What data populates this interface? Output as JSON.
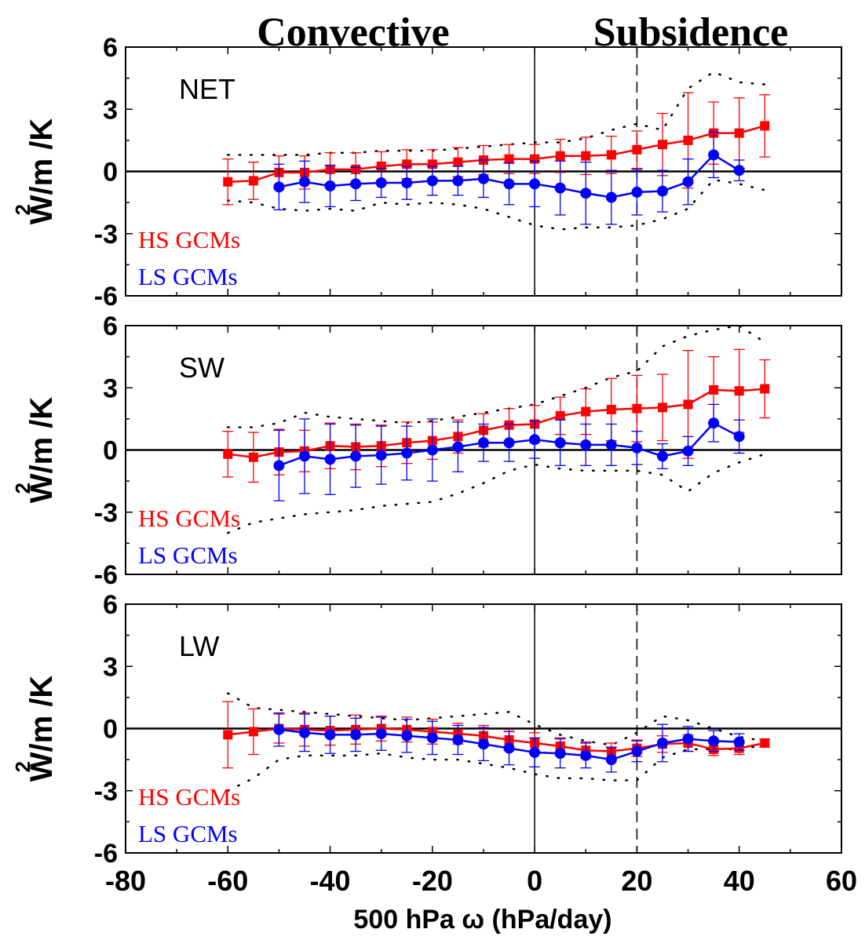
{
  "header": {
    "left": "Convective",
    "right": "Subsidence"
  },
  "xlabel": "500 hPa ω (hPa/day)",
  "ylabel": {
    "main": "W/m /K",
    "superscript": "2"
  },
  "x_ticks": [
    "-80",
    "-40",
    "-20",
    "0",
    "20",
    "40",
    "60"
  ],
  "x_ticks_partial": [
    "-60"
  ],
  "y_ticks": [
    "6",
    "3",
    "0",
    "-3",
    "-6"
  ],
  "legend": [
    "HS GCMs",
    "LS GCMs"
  ],
  "colors": {
    "hs": "#ff0000",
    "ls": "#0000ff",
    "axes": "#000000",
    "envelope": "#000000"
  },
  "chart_data": [
    {
      "type": "line",
      "panel_label": "NET",
      "xlim": [
        -80,
        60
      ],
      "ylim": [
        -6,
        6
      ],
      "reference_lines": {
        "solid_x": 0,
        "dashed_x": 20,
        "solid_y": 0
      },
      "series": [
        {
          "name": "HS GCMs",
          "marker": "square",
          "x": [
            -60,
            -55,
            -50,
            -45,
            -40,
            -35,
            -30,
            -25,
            -20,
            -15,
            -10,
            -5,
            0,
            5,
            10,
            15,
            20,
            25,
            30,
            35,
            40,
            45
          ],
          "y": [
            -0.5,
            -0.45,
            -0.05,
            -0.05,
            0.1,
            0.1,
            0.25,
            0.35,
            0.35,
            0.45,
            0.55,
            0.6,
            0.6,
            0.75,
            0.75,
            0.8,
            1.05,
            1.3,
            1.5,
            1.85,
            1.85,
            2.2
          ],
          "err": [
            1.1,
            0.9,
            0.8,
            0.8,
            0.8,
            0.8,
            0.7,
            0.7,
            0.7,
            0.7,
            0.7,
            0.7,
            0.7,
            0.8,
            0.9,
            0.9,
            0.9,
            1.5,
            2.3,
            1.5,
            1.7,
            1.5
          ]
        },
        {
          "name": "LS GCMs",
          "marker": "circle",
          "x": [
            -50,
            -45,
            -40,
            -35,
            -30,
            -25,
            -20,
            -15,
            -10,
            -5,
            0,
            5,
            10,
            15,
            20,
            25,
            30,
            35,
            40
          ],
          "y": [
            -0.75,
            -0.5,
            -0.7,
            -0.6,
            -0.55,
            -0.55,
            -0.45,
            -0.45,
            -0.35,
            -0.6,
            -0.6,
            -0.8,
            -1.05,
            -1.25,
            -1.0,
            -0.95,
            -0.5,
            0.8,
            0.05
          ],
          "err": [
            1.1,
            1.0,
            1.0,
            0.8,
            0.7,
            0.8,
            0.7,
            0.7,
            0.9,
            1.0,
            1.1,
            1.3,
            1.5,
            1.3,
            1.1,
            1.0,
            1.1,
            1.1,
            0.5
          ]
        }
      ],
      "envelope": {
        "x": [
          -60,
          -55,
          -50,
          -45,
          -40,
          -35,
          -30,
          -25,
          -20,
          -15,
          -10,
          -5,
          0,
          5,
          10,
          15,
          20,
          25,
          30,
          35,
          40,
          45
        ],
        "upper": [
          0.8,
          0.8,
          0.8,
          0.8,
          0.9,
          0.9,
          1.0,
          1.0,
          1.0,
          1.1,
          1.2,
          1.3,
          1.4,
          1.4,
          1.6,
          2.0,
          2.3,
          2.0,
          4.0,
          4.8,
          4.3,
          4.2
        ],
        "lower": [
          -1.4,
          -1.5,
          -1.8,
          -1.9,
          -1.8,
          -1.9,
          -1.5,
          -1.6,
          -1.5,
          -1.6,
          -1.8,
          -2.2,
          -2.6,
          -2.8,
          -2.7,
          -2.7,
          -2.6,
          -2.3,
          -1.8,
          -0.4,
          -0.6,
          -0.9
        ]
      }
    },
    {
      "type": "line",
      "panel_label": "SW",
      "xlim": [
        -80,
        60
      ],
      "ylim": [
        -6,
        6
      ],
      "reference_lines": {
        "solid_x": 0,
        "dashed_x": 20,
        "solid_y": 0
      },
      "series": [
        {
          "name": "HS GCMs",
          "marker": "square",
          "x": [
            -60,
            -55,
            -50,
            -45,
            -40,
            -35,
            -30,
            -25,
            -20,
            -15,
            -10,
            -5,
            0,
            5,
            10,
            15,
            20,
            25,
            30,
            35,
            40,
            45
          ],
          "y": [
            -0.2,
            -0.35,
            -0.1,
            -0.05,
            0.2,
            0.15,
            0.2,
            0.35,
            0.45,
            0.65,
            0.95,
            1.2,
            1.25,
            1.65,
            1.85,
            1.95,
            2.0,
            2.05,
            2.2,
            2.9,
            2.85,
            2.95
          ],
          "err": [
            1.1,
            1.2,
            1.1,
            1.0,
            1.1,
            1.1,
            1.0,
            1.0,
            0.9,
            0.8,
            0.8,
            0.8,
            0.9,
            0.9,
            1.1,
            1.5,
            1.6,
            1.6,
            2.6,
            1.6,
            2.0,
            1.4
          ]
        },
        {
          "name": "LS GCMs",
          "marker": "circle",
          "x": [
            -50,
            -45,
            -40,
            -35,
            -30,
            -25,
            -20,
            -15,
            -10,
            -5,
            0,
            5,
            10,
            15,
            20,
            25,
            30,
            35,
            40
          ],
          "y": [
            -0.75,
            -0.3,
            -0.45,
            -0.3,
            -0.25,
            -0.15,
            0.0,
            0.15,
            0.35,
            0.35,
            0.5,
            0.35,
            0.25,
            0.25,
            0.1,
            -0.3,
            -0.05,
            1.3,
            0.65
          ],
          "err": [
            1.7,
            1.8,
            1.7,
            1.5,
            1.4,
            1.3,
            1.5,
            1.2,
            0.9,
            0.9,
            0.9,
            1.1,
            1.0,
            1.0,
            0.8,
            0.6,
            0.7,
            0.9,
            0.8
          ]
        }
      ],
      "envelope": {
        "x": [
          -60,
          -55,
          -50,
          -45,
          -40,
          -35,
          -30,
          -25,
          -20,
          -15,
          -10,
          -5,
          0,
          5,
          10,
          15,
          20,
          25,
          30,
          35,
          40,
          45
        ],
        "upper": [
          1.1,
          1.1,
          1.3,
          1.8,
          1.6,
          1.5,
          1.4,
          1.3,
          1.4,
          1.6,
          1.8,
          2.0,
          2.2,
          2.6,
          3.0,
          3.5,
          3.8,
          5.0,
          5.5,
          5.8,
          6.0,
          5.2
        ],
        "lower": [
          -4.0,
          -3.5,
          -3.3,
          -3.1,
          -3.0,
          -2.9,
          -2.7,
          -2.6,
          -2.5,
          -2.1,
          -1.6,
          -1.0,
          -0.7,
          -0.9,
          -1.0,
          -1.0,
          -1.0,
          -1.2,
          -2.0,
          -1.1,
          -0.6,
          -0.2
        ]
      }
    },
    {
      "type": "line",
      "panel_label": "LW",
      "xlim": [
        -80,
        60
      ],
      "ylim": [
        -6,
        6
      ],
      "reference_lines": {
        "solid_x": 0,
        "dashed_x": 20,
        "solid_y": 0
      },
      "series": [
        {
          "name": "HS GCMs",
          "marker": "square",
          "x": [
            -60,
            -55,
            -50,
            -45,
            -40,
            -35,
            -30,
            -25,
            -20,
            -15,
            -10,
            -5,
            0,
            5,
            10,
            15,
            20,
            25,
            30,
            35,
            40,
            45
          ],
          "y": [
            -0.3,
            -0.15,
            0.0,
            -0.05,
            -0.1,
            -0.05,
            0.0,
            -0.05,
            -0.15,
            -0.25,
            -0.35,
            -0.55,
            -0.7,
            -0.85,
            -1.05,
            -1.1,
            -0.95,
            -0.75,
            -0.7,
            -1.0,
            -0.95,
            -0.7
          ],
          "err": [
            1.6,
            1.1,
            0.7,
            0.8,
            0.7,
            0.7,
            0.6,
            0.6,
            0.6,
            0.5,
            0.5,
            0.5,
            0.5,
            0.4,
            0.4,
            0.4,
            0.4,
            0.4,
            0.4,
            0.3,
            0.3,
            0.2
          ]
        },
        {
          "name": "LS GCMs",
          "marker": "circle",
          "x": [
            -50,
            -45,
            -40,
            -35,
            -30,
            -25,
            -20,
            -15,
            -10,
            -5,
            0,
            5,
            10,
            15,
            20,
            25,
            30,
            35,
            40
          ],
          "y": [
            -0.05,
            -0.2,
            -0.3,
            -0.3,
            -0.25,
            -0.35,
            -0.45,
            -0.55,
            -0.75,
            -0.95,
            -1.15,
            -1.2,
            -1.3,
            -1.5,
            -1.1,
            -0.7,
            -0.5,
            -0.6,
            -0.65
          ],
          "err": [
            0.8,
            0.9,
            0.9,
            0.8,
            0.8,
            0.8,
            0.8,
            0.7,
            0.8,
            0.8,
            0.7,
            0.7,
            0.6,
            0.6,
            0.5,
            0.9,
            0.6,
            0.5,
            0.4
          ]
        }
      ],
      "envelope": {
        "x": [
          -60,
          -55,
          -50,
          -45,
          -40,
          -35,
          -30,
          -25,
          -20,
          -15,
          -10,
          -5,
          0,
          5,
          10,
          15,
          20,
          25,
          30,
          35,
          40,
          45
        ],
        "upper": [
          1.7,
          1.0,
          0.9,
          0.8,
          0.7,
          0.6,
          0.5,
          0.4,
          0.5,
          0.6,
          0.7,
          0.8,
          0.2,
          -0.3,
          -0.6,
          -0.8,
          -0.2,
          0.6,
          0.4,
          0.0,
          -0.4,
          -0.6
        ],
        "lower": [
          -3.0,
          -2.4,
          -1.5,
          -1.3,
          -1.3,
          -1.3,
          -1.2,
          -1.4,
          -1.5,
          -1.5,
          -1.7,
          -1.9,
          -2.2,
          -2.4,
          -2.4,
          -2.5,
          -2.5,
          -1.4,
          -1.0,
          -1.0,
          -1.0,
          -0.8
        ]
      }
    }
  ]
}
